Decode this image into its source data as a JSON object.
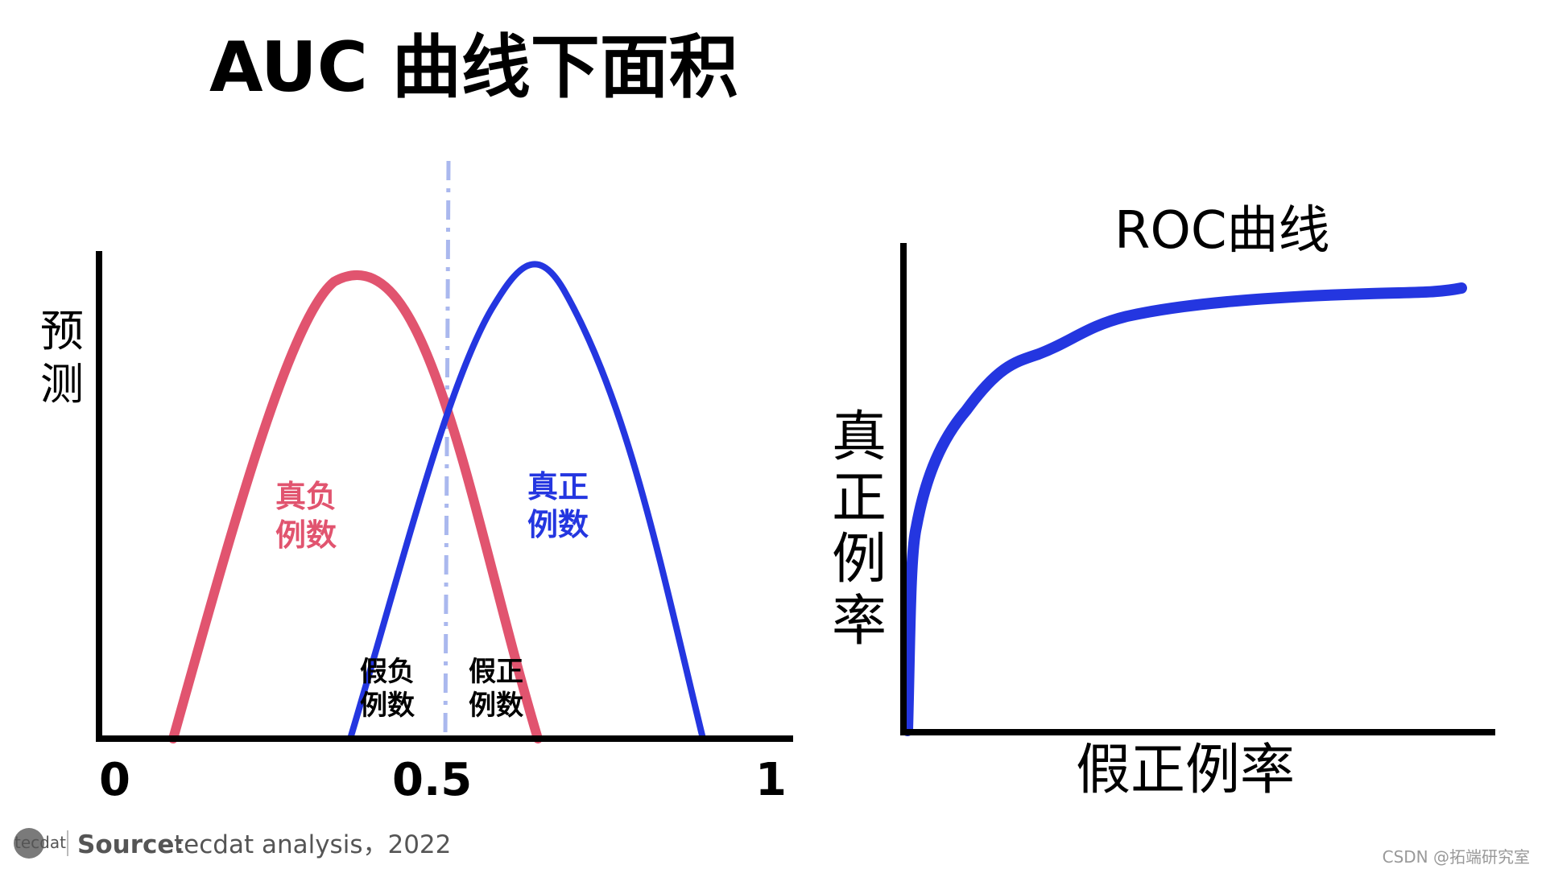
{
  "title": "AUC  曲线下面积",
  "left_diagram": {
    "y_axis_label": [
      "预",
      "测"
    ],
    "x_ticks": [
      "0",
      "0.5",
      "1"
    ],
    "negative_curve": {
      "label_line1": "真负",
      "label_line2": "例数",
      "color": "#e1546f"
    },
    "positive_curve": {
      "label_line1": "真正",
      "label_line2": "例数",
      "color": "#2436e0"
    },
    "false_negative": {
      "label_line1": "假负",
      "label_line2": "例数"
    },
    "false_positive": {
      "label_line1": "假正",
      "label_line2": "例数"
    },
    "threshold_color": "#aab8ee"
  },
  "right_diagram": {
    "title": "ROC曲线",
    "y_axis_label": [
      "真",
      "正",
      "例",
      "率"
    ],
    "x_axis_label": "假正例率",
    "curve_color": "#2436e0"
  },
  "footer": {
    "logo_text": "tecdat",
    "source_label": "Source:",
    "source_text": " tecdat analysis，2022",
    "watermark": "CSDN @拓端研究室"
  },
  "colors": {
    "axis": "#000000",
    "source_gray": "#555555",
    "logo_bg": "#7a7a7a"
  }
}
